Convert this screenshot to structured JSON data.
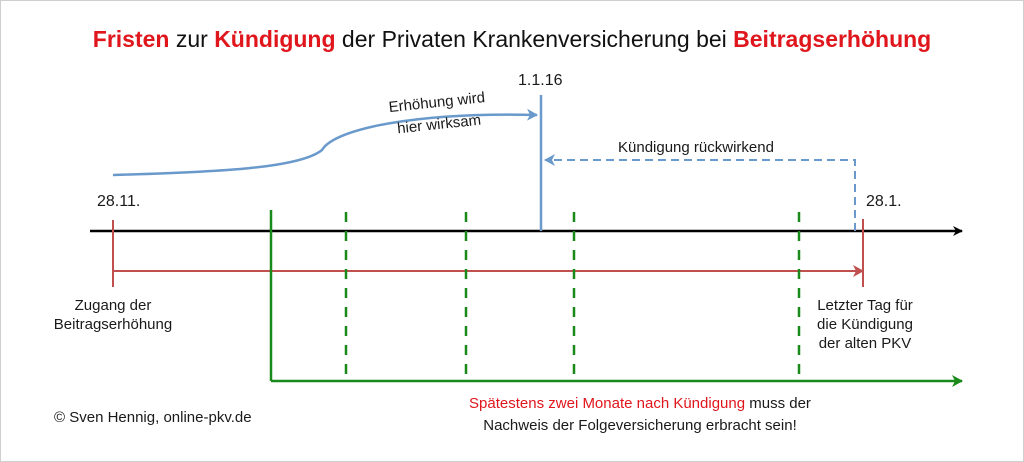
{
  "title": {
    "part1": "Fristen",
    "part2": " zur ",
    "part3": "Kündigung",
    "part4": " der Privaten Krankenversicherung bei ",
    "part5": "Beitragserhöhung"
  },
  "dates": {
    "start": "28.11.",
    "effective": "1.1.16",
    "end": "28.1."
  },
  "labels": {
    "increase_line1": "Erhöhung wird",
    "increase_line2": "hier wirksam",
    "retroactive": "Kündigung rückwirkend",
    "receipt_line1": "Zugang der",
    "receipt_line2": "Beitragserhöhung",
    "lastday_line1": "Letzter Tag für",
    "lastday_line2": "die Kündigung",
    "lastday_line3": "der alten PKV",
    "deadline_red": "Spätestens zwei Monate nach Kündigung",
    "deadline_rest": " muss der",
    "deadline_line2": "Nachweis der Folgeversicherung erbracht sein!",
    "copyright": "© Sven Hennig, online-pkv.de"
  },
  "colors": {
    "highlight": "#e0161d",
    "timeline": "#000000",
    "blue": "#6a9acb",
    "red_line": "#c0504d",
    "green": "#1a8a1a"
  }
}
